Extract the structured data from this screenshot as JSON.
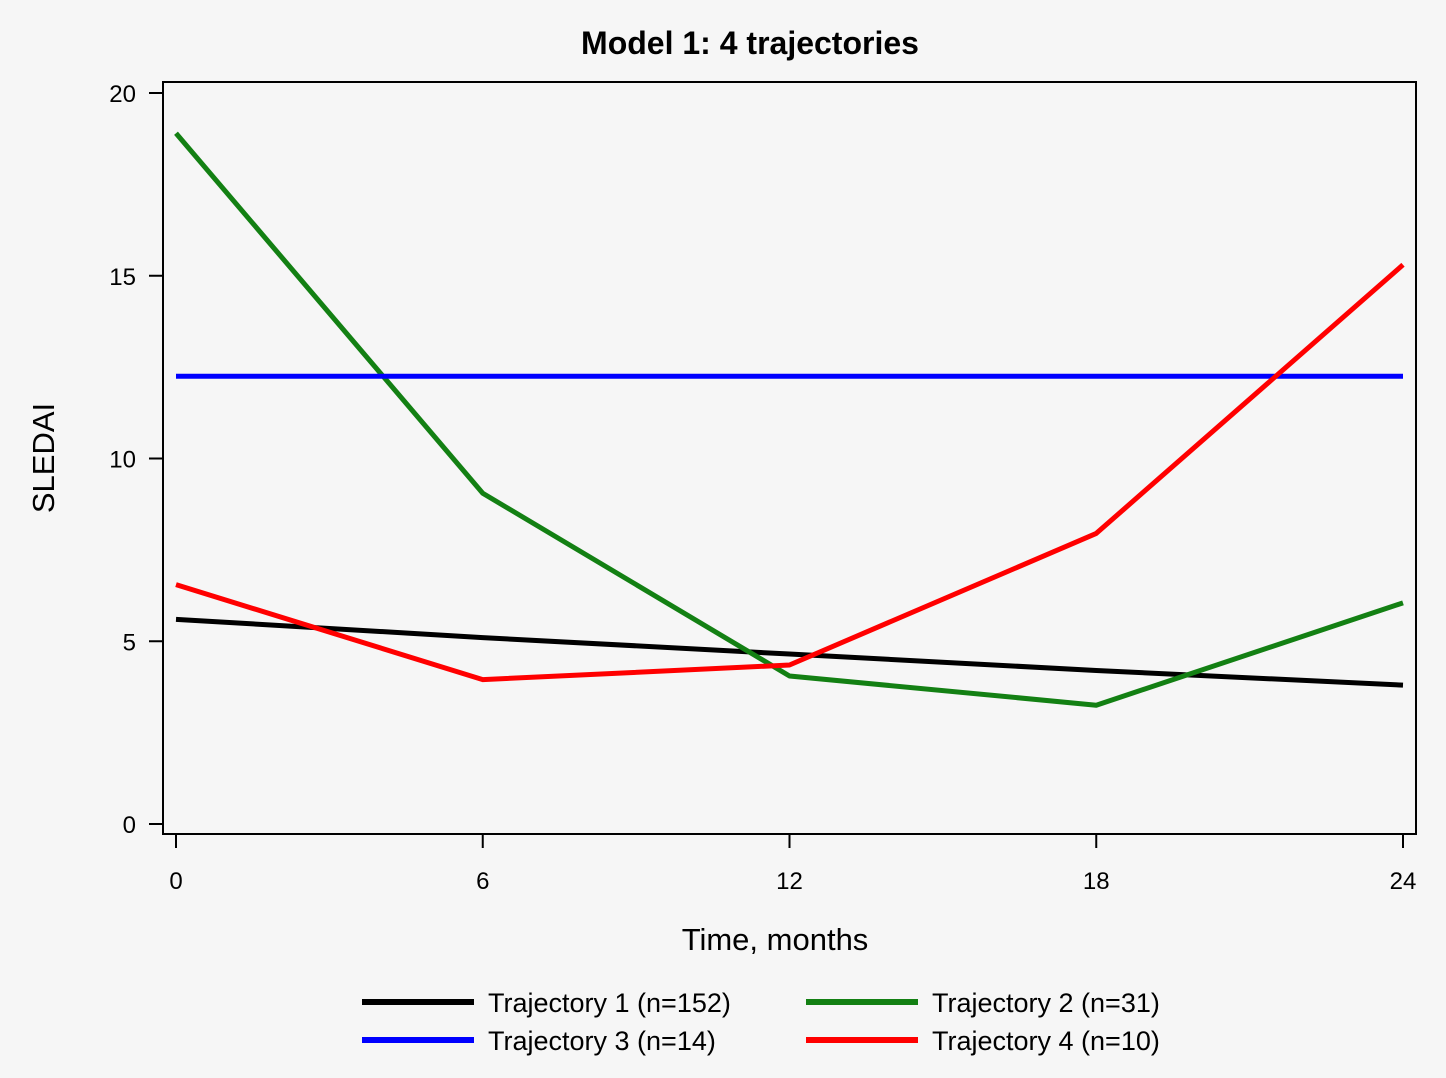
{
  "chart_data": {
    "type": "line",
    "title": "Model 1: 4 trajectories",
    "xlabel": "Time, months",
    "ylabel": "SLEDAI",
    "xlim": [
      0,
      24
    ],
    "ylim": [
      0,
      20
    ],
    "x_ticks": [
      0,
      6,
      12,
      18,
      24
    ],
    "y_ticks": [
      0,
      5,
      10,
      15,
      20
    ],
    "grid": false,
    "legend_position": "bottom",
    "series": [
      {
        "name": "Trajectory 1 (n=152)",
        "color": "#000000",
        "x": [
          0,
          6,
          12,
          18,
          24
        ],
        "values": [
          5.6,
          5.1,
          4.65,
          4.2,
          3.8
        ]
      },
      {
        "name": "Trajectory 2 (n=31)",
        "color": "#138013",
        "x": [
          0,
          6,
          12,
          18,
          24
        ],
        "values": [
          18.9,
          9.05,
          4.05,
          3.25,
          6.05
        ]
      },
      {
        "name": "Trajectory 3 (n=14)",
        "color": "#0000ff",
        "x": [
          0,
          6,
          12,
          18,
          24
        ],
        "values": [
          12.25,
          12.25,
          12.25,
          12.25,
          12.25
        ]
      },
      {
        "name": "Trajectory 4 (n=10)",
        "color": "#ff0000",
        "x": [
          0,
          6,
          12,
          18,
          24
        ],
        "values": [
          6.55,
          3.95,
          4.35,
          7.95,
          15.3
        ]
      }
    ]
  }
}
